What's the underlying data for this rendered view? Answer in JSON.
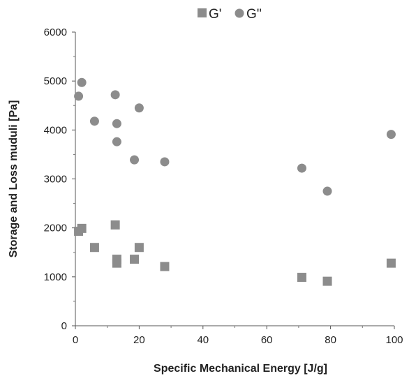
{
  "chart_data": {
    "type": "scatter",
    "xlabel": "Specific Mechanical Energy  [J/g]",
    "ylabel": "Storage and Loss muduli [Pa]",
    "xlim": [
      0,
      100
    ],
    "ylim": [
      0,
      6000
    ],
    "x_ticks": [
      0,
      20,
      40,
      60,
      80,
      100
    ],
    "y_ticks": [
      0,
      1000,
      2000,
      3000,
      4000,
      5000,
      6000
    ],
    "grid": false,
    "legend_position": "top",
    "series": [
      {
        "name": "G'",
        "marker": "square",
        "color": "#8c8c8c",
        "points": [
          {
            "x": 1,
            "y": 1930
          },
          {
            "x": 2,
            "y": 1990
          },
          {
            "x": 6,
            "y": 1600
          },
          {
            "x": 12.5,
            "y": 2060
          },
          {
            "x": 13,
            "y": 1360
          },
          {
            "x": 13,
            "y": 1280
          },
          {
            "x": 18.5,
            "y": 1360
          },
          {
            "x": 20,
            "y": 1600
          },
          {
            "x": 28,
            "y": 1210
          },
          {
            "x": 71,
            "y": 990
          },
          {
            "x": 79,
            "y": 910
          },
          {
            "x": 99,
            "y": 1280
          }
        ]
      },
      {
        "name": "G''",
        "marker": "circle",
        "color": "#8c8c8c",
        "points": [
          {
            "x": 1,
            "y": 4690
          },
          {
            "x": 2,
            "y": 4970
          },
          {
            "x": 6,
            "y": 4180
          },
          {
            "x": 12.5,
            "y": 4720
          },
          {
            "x": 13,
            "y": 4130
          },
          {
            "x": 13,
            "y": 3760
          },
          {
            "x": 18.5,
            "y": 3390
          },
          {
            "x": 20,
            "y": 4450
          },
          {
            "x": 28,
            "y": 3350
          },
          {
            "x": 71,
            "y": 3220
          },
          {
            "x": 79,
            "y": 2750
          },
          {
            "x": 99,
            "y": 3910
          }
        ]
      }
    ]
  }
}
